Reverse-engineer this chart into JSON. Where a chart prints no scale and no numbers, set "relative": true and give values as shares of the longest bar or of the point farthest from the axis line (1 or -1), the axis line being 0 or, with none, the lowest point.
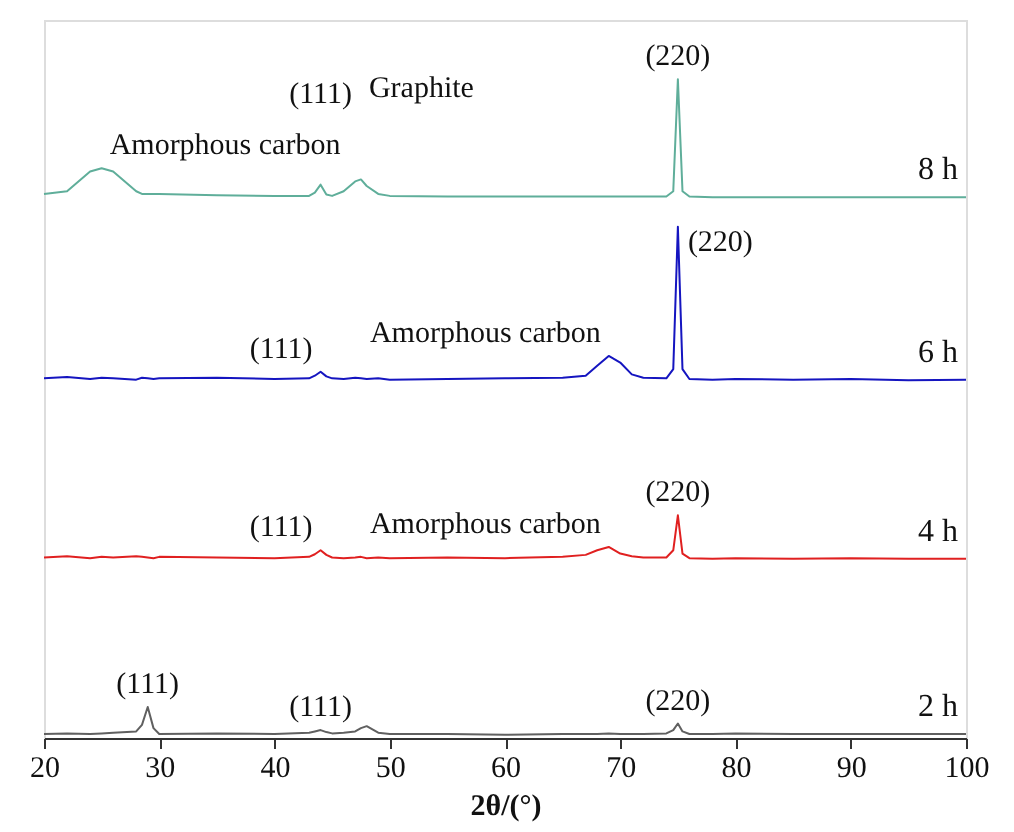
{
  "chart_data": {
    "type": "line",
    "relative": true,
    "xlabel": "2θ/(°)",
    "xlim": [
      20,
      100
    ],
    "xticks": [
      20,
      30,
      40,
      50,
      60,
      70,
      80,
      90,
      100
    ],
    "grid": false,
    "legend": false,
    "marker": "none",
    "line_style": "solid",
    "x": [
      20,
      22,
      24,
      25,
      26,
      28,
      28.5,
      29,
      29.5,
      30,
      35,
      40,
      43,
      43.5,
      44,
      44.5,
      45,
      46,
      47,
      47.5,
      48,
      49,
      50,
      55,
      60,
      65,
      67,
      68,
      69,
      70,
      71,
      72,
      74,
      74.6,
      75,
      75.4,
      76,
      78,
      80,
      85,
      90,
      95,
      100
    ],
    "series": [
      {
        "name": "8 h",
        "color": "#5fae9a",
        "values": [
          0.826,
          0.83,
          0.86,
          0.865,
          0.86,
          0.83,
          0.826,
          0.826,
          0.826,
          0.826,
          0.824,
          0.823,
          0.823,
          0.828,
          0.84,
          0.825,
          0.823,
          0.83,
          0.845,
          0.848,
          0.838,
          0.826,
          0.823,
          0.822,
          0.822,
          0.822,
          0.822,
          0.822,
          0.822,
          0.822,
          0.822,
          0.822,
          0.822,
          0.83,
          1.0,
          0.83,
          0.822,
          0.821,
          0.821,
          0.821,
          0.821,
          0.821,
          0.821
        ]
      },
      {
        "name": "6 h",
        "color": "#1515c0",
        "values": [
          0.546,
          0.548,
          0.545,
          0.547,
          0.546,
          0.544,
          0.547,
          0.546,
          0.545,
          0.546,
          0.547,
          0.545,
          0.546,
          0.55,
          0.556,
          0.549,
          0.546,
          0.545,
          0.547,
          0.546,
          0.545,
          0.546,
          0.544,
          0.545,
          0.546,
          0.547,
          0.55,
          0.565,
          0.58,
          0.57,
          0.552,
          0.547,
          0.546,
          0.56,
          0.776,
          0.56,
          0.545,
          0.544,
          0.545,
          0.544,
          0.545,
          0.543,
          0.544
        ]
      },
      {
        "name": "4 h",
        "color": "#e02020",
        "values": [
          0.274,
          0.276,
          0.273,
          0.275,
          0.274,
          0.276,
          0.275,
          0.274,
          0.273,
          0.275,
          0.274,
          0.273,
          0.275,
          0.279,
          0.285,
          0.278,
          0.274,
          0.273,
          0.274,
          0.275,
          0.273,
          0.274,
          0.273,
          0.274,
          0.273,
          0.275,
          0.278,
          0.285,
          0.29,
          0.28,
          0.276,
          0.274,
          0.274,
          0.285,
          0.338,
          0.28,
          0.273,
          0.272,
          0.273,
          0.272,
          0.273,
          0.272,
          0.272
        ]
      },
      {
        "name": "2 h",
        "color": "#606060",
        "values": [
          0.006,
          0.007,
          0.006,
          0.007,
          0.008,
          0.01,
          0.02,
          0.047,
          0.015,
          0.006,
          0.007,
          0.006,
          0.008,
          0.01,
          0.012,
          0.009,
          0.007,
          0.008,
          0.01,
          0.015,
          0.018,
          0.008,
          0.006,
          0.006,
          0.005,
          0.006,
          0.006,
          0.006,
          0.007,
          0.006,
          0.006,
          0.006,
          0.007,
          0.012,
          0.022,
          0.01,
          0.006,
          0.006,
          0.007,
          0.006,
          0.006,
          0.006,
          0.006
        ]
      }
    ],
    "annotations": [
      {
        "text": "Amorphous carbon",
        "x": 25,
        "y": 0.865
      },
      {
        "text": "(111)",
        "x": 44,
        "y": 0.84
      },
      {
        "text": "Graphite",
        "x": 47.5,
        "y": 0.848
      },
      {
        "text": "(220)",
        "x": 75,
        "y": 1.0
      },
      {
        "text": "Amorphous carbon",
        "x": 69,
        "y": 0.58
      },
      {
        "text": "(111)",
        "x": 44,
        "y": 0.556
      },
      {
        "text": "(220)",
        "x": 75,
        "y": 0.776
      },
      {
        "text": "Amorphous carbon",
        "x": 69,
        "y": 0.29
      },
      {
        "text": "(111)",
        "x": 44,
        "y": 0.285
      },
      {
        "text": "(220)",
        "x": 75,
        "y": 0.338
      },
      {
        "text": "(111)",
        "x": 29,
        "y": 0.047
      },
      {
        "text": "(111)",
        "x": 44,
        "y": 0.012
      },
      {
        "text": "(220)",
        "x": 75,
        "y": 0.022
      }
    ]
  }
}
